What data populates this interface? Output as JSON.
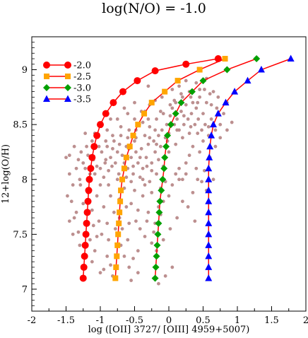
{
  "chart_data": {
    "type": "line",
    "title": "log(N/O) = -1.0",
    "xlabel": "log ([OII] 3727/ [OIII] 4959+5007)",
    "ylabel": "12+log(O/H)",
    "xlim": [
      -2,
      2
    ],
    "ylim": [
      6.8,
      9.3
    ],
    "xticks": [
      "-2",
      "-1.5",
      "-1",
      "-0.5",
      "0",
      "0.5",
      "1",
      "1.5",
      "2"
    ],
    "yticks": [
      "7",
      "7.5",
      "8",
      "8.5",
      "9"
    ],
    "grid": false,
    "legend_position": "top-left",
    "series": [
      {
        "name": "-2.0",
        "color": "#ff0000",
        "marker": "circle",
        "line_color": "#ff0000",
        "points": [
          [
            -1.25,
            7.1
          ],
          [
            -1.24,
            7.2
          ],
          [
            -1.23,
            7.3
          ],
          [
            -1.22,
            7.4
          ],
          [
            -1.21,
            7.5
          ],
          [
            -1.2,
            7.6
          ],
          [
            -1.19,
            7.7
          ],
          [
            -1.18,
            7.8
          ],
          [
            -1.17,
            7.9
          ],
          [
            -1.16,
            8.0
          ],
          [
            -1.14,
            8.1
          ],
          [
            -1.12,
            8.2
          ],
          [
            -1.09,
            8.3
          ],
          [
            -1.05,
            8.4
          ],
          [
            -1.0,
            8.5
          ],
          [
            -0.92,
            8.6
          ],
          [
            -0.81,
            8.7
          ],
          [
            -0.67,
            8.8
          ],
          [
            -0.46,
            8.9
          ],
          [
            -0.2,
            8.99
          ],
          [
            0.25,
            9.05
          ],
          [
            0.72,
            9.1
          ]
        ]
      },
      {
        "name": "-2.5",
        "color": "#ffa500",
        "marker": "square",
        "line_color": "#ff0000",
        "points": [
          [
            -0.78,
            7.1
          ],
          [
            -0.77,
            7.2
          ],
          [
            -0.76,
            7.3
          ],
          [
            -0.75,
            7.4
          ],
          [
            -0.74,
            7.5
          ],
          [
            -0.73,
            7.6
          ],
          [
            -0.72,
            7.7
          ],
          [
            -0.71,
            7.8
          ],
          [
            -0.7,
            7.9
          ],
          [
            -0.68,
            8.0
          ],
          [
            -0.65,
            8.1
          ],
          [
            -0.62,
            8.2
          ],
          [
            -0.57,
            8.3
          ],
          [
            -0.52,
            8.4
          ],
          [
            -0.45,
            8.5
          ],
          [
            -0.36,
            8.6
          ],
          [
            -0.25,
            8.7
          ],
          [
            -0.06,
            8.8
          ],
          [
            0.13,
            8.9
          ],
          [
            0.45,
            9.0
          ],
          [
            0.82,
            9.1
          ]
        ]
      },
      {
        "name": "-3.0",
        "color": "#00a000",
        "marker": "diamond",
        "line_color": "#ff0000",
        "points": [
          [
            -0.2,
            7.1
          ],
          [
            -0.19,
            7.2
          ],
          [
            -0.18,
            7.3
          ],
          [
            -0.17,
            7.4
          ],
          [
            -0.16,
            7.5
          ],
          [
            -0.15,
            7.6
          ],
          [
            -0.14,
            7.7
          ],
          [
            -0.13,
            7.8
          ],
          [
            -0.11,
            7.9
          ],
          [
            -0.09,
            8.0
          ],
          [
            -0.07,
            8.1
          ],
          [
            -0.06,
            8.2
          ],
          [
            -0.04,
            8.3
          ],
          [
            -0.02,
            8.4
          ],
          [
            0.03,
            8.5
          ],
          [
            0.1,
            8.6
          ],
          [
            0.18,
            8.7
          ],
          [
            0.34,
            8.8
          ],
          [
            0.5,
            8.9
          ],
          [
            0.85,
            9.0
          ],
          [
            1.28,
            9.1
          ]
        ]
      },
      {
        "name": "-3.5",
        "color": "#0000ff",
        "marker": "triangle",
        "line_color": "#ff0000",
        "points": [
          [
            0.58,
            7.1
          ],
          [
            0.58,
            7.2
          ],
          [
            0.58,
            7.3
          ],
          [
            0.58,
            7.4
          ],
          [
            0.58,
            7.5
          ],
          [
            0.58,
            7.6
          ],
          [
            0.58,
            7.7
          ],
          [
            0.58,
            7.8
          ],
          [
            0.58,
            7.9
          ],
          [
            0.58,
            8.0
          ],
          [
            0.58,
            8.1
          ],
          [
            0.59,
            8.2
          ],
          [
            0.6,
            8.3
          ],
          [
            0.62,
            8.4
          ],
          [
            0.65,
            8.5
          ],
          [
            0.72,
            8.6
          ],
          [
            0.83,
            8.7
          ],
          [
            0.96,
            8.8
          ],
          [
            1.15,
            8.9
          ],
          [
            1.35,
            9.0
          ],
          [
            1.78,
            9.1
          ]
        ]
      }
    ],
    "observations": {
      "color": "#bc8f8f",
      "marker": "dot",
      "points": [
        [
          -1.35,
          8.1
        ],
        [
          -1.3,
          8.0
        ],
        [
          -1.25,
          8.15
        ],
        [
          -1.2,
          8.3
        ],
        [
          -1.42,
          7.8
        ],
        [
          -1.4,
          7.5
        ],
        [
          -1.32,
          7.52
        ],
        [
          -1.38,
          7.65
        ],
        [
          -1.29,
          7.95
        ],
        [
          -1.18,
          8.22
        ],
        [
          -1.15,
          8.05
        ],
        [
          -1.1,
          8.18
        ],
        [
          -1.05,
          8.12
        ],
        [
          -1.0,
          8.1
        ],
        [
          -0.98,
          8.25
        ],
        [
          -0.95,
          8.02
        ],
        [
          -0.93,
          8.15
        ],
        [
          -0.9,
          8.3
        ],
        [
          -0.88,
          8.08
        ],
        [
          -0.85,
          8.2
        ],
        [
          -0.83,
          8.12
        ],
        [
          -0.8,
          8.35
        ],
        [
          -0.78,
          8.15
        ],
        [
          -0.75,
          8.25
        ],
        [
          -0.73,
          8.05
        ],
        [
          -0.7,
          8.4
        ],
        [
          -0.68,
          8.22
        ],
        [
          -0.65,
          8.15
        ],
        [
          -0.62,
          8.3
        ],
        [
          -0.6,
          8.1
        ],
        [
          -0.58,
          8.45
        ],
        [
          -0.55,
          8.2
        ],
        [
          -0.52,
          8.05
        ],
        [
          -0.5,
          8.35
        ],
        [
          -0.48,
          8.25
        ],
        [
          -0.45,
          8.15
        ],
        [
          -0.43,
          8.5
        ],
        [
          -0.4,
          8.28
        ],
        [
          -0.38,
          8.1
        ],
        [
          -0.35,
          8.4
        ],
        [
          -0.33,
          8.2
        ],
        [
          -0.3,
          8.32
        ],
        [
          -0.28,
          8.48
        ],
        [
          -0.25,
          8.15
        ],
        [
          -0.22,
          8.35
        ],
        [
          -0.2,
          8.25
        ],
        [
          -0.18,
          8.55
        ],
        [
          -0.15,
          8.4
        ],
        [
          -0.12,
          8.3
        ],
        [
          -0.1,
          8.45
        ],
        [
          -0.08,
          8.6
        ],
        [
          -0.05,
          8.38
        ],
        [
          -0.03,
          8.5
        ],
        [
          0.0,
          8.42
        ],
        [
          0.02,
          8.58
        ],
        [
          0.05,
          8.65
        ],
        [
          0.08,
          8.5
        ],
        [
          0.1,
          8.7
        ],
        [
          0.12,
          8.55
        ],
        [
          0.15,
          8.45
        ],
        [
          0.18,
          8.62
        ],
        [
          0.2,
          8.75
        ],
        [
          0.22,
          8.5
        ],
        [
          0.25,
          8.68
        ],
        [
          0.28,
          8.55
        ],
        [
          0.3,
          8.8
        ],
        [
          0.33,
          8.6
        ],
        [
          0.35,
          8.7
        ],
        [
          0.38,
          8.5
        ],
        [
          0.4,
          8.65
        ],
        [
          0.43,
          8.55
        ],
        [
          0.45,
          8.75
        ],
        [
          0.48,
          8.45
        ],
        [
          0.5,
          8.6
        ],
        [
          0.53,
          8.5
        ],
        [
          0.55,
          8.7
        ],
        [
          0.58,
          8.4
        ],
        [
          0.62,
          8.55
        ],
        [
          0.68,
          8.45
        ],
        [
          0.75,
          8.5
        ],
        [
          -0.98,
          7.5
        ],
        [
          -1.02,
          7.62
        ],
        [
          -0.95,
          7.75
        ],
        [
          -0.9,
          7.6
        ],
        [
          -0.88,
          7.45
        ],
        [
          -0.85,
          7.85
        ],
        [
          -0.8,
          7.7
        ],
        [
          -0.78,
          7.55
        ],
        [
          -0.72,
          7.82
        ],
        [
          -0.7,
          7.4
        ],
        [
          -0.65,
          7.3
        ],
        [
          -0.6,
          7.45
        ],
        [
          -0.58,
          7.6
        ],
        [
          -0.55,
          7.78
        ],
        [
          -0.5,
          7.9
        ],
        [
          -0.45,
          7.72
        ],
        [
          -0.42,
          7.55
        ],
        [
          -0.38,
          7.85
        ],
        [
          -0.35,
          7.95
        ],
        [
          -0.3,
          7.7
        ],
        [
          -0.25,
          7.88
        ],
        [
          -0.2,
          7.6
        ],
        [
          -0.15,
          7.75
        ],
        [
          -0.12,
          7.92
        ],
        [
          -0.08,
          7.8
        ],
        [
          -0.05,
          7.98
        ],
        [
          0.0,
          7.85
        ],
        [
          0.05,
          7.95
        ],
        [
          0.1,
          8.05
        ],
        [
          0.15,
          8.1
        ],
        [
          0.2,
          8.0
        ],
        [
          0.25,
          8.15
        ],
        [
          0.3,
          8.22
        ],
        [
          0.35,
          8.3
        ],
        [
          0.4,
          8.1
        ],
        [
          0.45,
          8.25
        ],
        [
          -0.95,
          7.18
        ],
        [
          -0.9,
          7.3
        ],
        [
          -0.85,
          7.22
        ],
        [
          -0.58,
          7.2
        ],
        [
          -0.52,
          7.28
        ],
        [
          -1.12,
          7.25
        ],
        [
          -1.08,
          7.35
        ],
        [
          -1.0,
          7.15
        ],
        [
          -0.45,
          7.35
        ],
        [
          -0.35,
          7.48
        ],
        [
          -0.25,
          7.42
        ],
        [
          -0.9,
          8.45
        ],
        [
          -0.85,
          8.55
        ],
        [
          -0.6,
          8.6
        ],
        [
          -0.5,
          8.7
        ],
        [
          -0.35,
          8.62
        ],
        [
          -0.2,
          8.72
        ],
        [
          -0.1,
          8.75
        ],
        [
          0.05,
          8.82
        ],
        [
          0.15,
          8.85
        ],
        [
          0.25,
          8.9
        ],
        [
          0.4,
          8.88
        ],
        [
          0.55,
          8.92
        ],
        [
          0.65,
          8.8
        ],
        [
          -0.3,
          8.85
        ],
        [
          -1.0,
          7.95
        ],
        [
          -1.05,
          7.85
        ],
        [
          -1.12,
          7.72
        ],
        [
          -1.18,
          7.88
        ],
        [
          -1.25,
          7.78
        ],
        [
          -1.35,
          7.7
        ],
        [
          -1.45,
          7.62
        ],
        [
          -1.48,
          7.85
        ],
        [
          -1.5,
          8.2
        ],
        [
          -1.45,
          8.05
        ],
        [
          -1.4,
          7.95
        ],
        [
          -0.65,
          8.65
        ],
        [
          -0.75,
          8.55
        ],
        [
          -0.82,
          8.4
        ],
        [
          -0.92,
          8.35
        ],
        [
          -0.25,
          8.08
        ],
        [
          -0.15,
          8.18
        ],
        [
          0.0,
          8.25
        ],
        [
          0.1,
          8.32
        ],
        [
          0.2,
          8.38
        ],
        [
          0.3,
          8.42
        ],
        [
          0.12,
          7.65
        ],
        [
          0.02,
          7.55
        ],
        [
          -0.08,
          7.45
        ],
        [
          -0.18,
          7.35
        ],
        [
          0.2,
          7.8
        ],
        [
          0.35,
          7.88
        ],
        [
          -0.42,
          8.02
        ],
        [
          -0.55,
          7.98
        ],
        [
          -0.65,
          7.92
        ],
        [
          -0.75,
          8.0
        ],
        [
          -0.88,
          7.95
        ],
        [
          -0.5,
          8.55
        ],
        [
          -0.4,
          8.62
        ],
        [
          -0.3,
          8.55
        ],
        [
          -0.2,
          8.45
        ],
        [
          0.45,
          8.82
        ],
        [
          0.6,
          8.78
        ],
        [
          0.7,
          8.65
        ],
        [
          0.8,
          8.6
        ],
        [
          0.85,
          8.7
        ],
        [
          -1.08,
          8.42
        ],
        [
          -1.12,
          8.35
        ],
        [
          -1.22,
          8.42
        ],
        [
          -1.28,
          8.25
        ],
        [
          -1.38,
          8.3
        ],
        [
          -1.45,
          8.22
        ],
        [
          -0.7,
          8.48
        ],
        [
          -0.6,
          8.38
        ],
        [
          -0.48,
          8.45
        ],
        [
          -0.38,
          8.52
        ],
        [
          -0.28,
          8.38
        ],
        [
          -0.18,
          8.32
        ],
        [
          -0.72,
          7.65
        ],
        [
          -0.62,
          7.75
        ],
        [
          -0.68,
          7.55
        ],
        [
          -0.48,
          7.62
        ],
        [
          -0.32,
          7.62
        ],
        [
          -0.22,
          7.52
        ],
        [
          -0.12,
          7.68
        ],
        [
          0.28,
          7.75
        ],
        [
          0.38,
          7.62
        ],
        [
          0.48,
          7.98
        ],
        [
          0.52,
          8.08
        ],
        [
          0.6,
          8.2
        ],
        [
          0.68,
          8.3
        ],
        [
          0.75,
          8.38
        ],
        [
          0.85,
          8.45
        ],
        [
          0.92,
          8.52
        ],
        [
          -0.15,
          7.05
        ],
        [
          -0.05,
          7.12
        ],
        [
          0.05,
          7.2
        ],
        [
          -0.55,
          7.08
        ],
        [
          -0.45,
          7.15
        ],
        [
          -0.82,
          7.12
        ],
        [
          -0.38,
          8.0
        ],
        [
          -0.28,
          7.98
        ],
        [
          -0.18,
          8.05
        ],
        [
          -0.08,
          8.12
        ],
        [
          -0.62,
          8.02
        ],
        [
          -0.52,
          8.12
        ],
        [
          -0.42,
          8.2
        ],
        [
          -0.32,
          8.12
        ],
        [
          -0.92,
          8.18
        ],
        [
          -0.82,
          8.28
        ],
        [
          -0.72,
          8.32
        ],
        [
          -0.58,
          8.28
        ],
        [
          -0.48,
          8.38
        ],
        [
          -1.02,
          8.3
        ],
        [
          -1.08,
          8.05
        ],
        [
          -1.22,
          8.1
        ],
        [
          -1.32,
          8.18
        ],
        [
          -0.28,
          8.68
        ],
        [
          -0.12,
          8.62
        ],
        [
          0.08,
          8.72
        ],
        [
          0.18,
          8.78
        ],
        [
          0.32,
          8.75
        ],
        [
          0.42,
          8.7
        ],
        [
          0.52,
          8.82
        ],
        [
          0.62,
          8.68
        ],
        [
          0.72,
          8.75
        ],
        [
          0.02,
          8.68
        ],
        [
          -0.02,
          8.35
        ],
        [
          0.12,
          8.45
        ],
        [
          0.22,
          8.58
        ],
        [
          0.32,
          8.48
        ],
        [
          0.42,
          8.42
        ],
        [
          0.5,
          8.35
        ],
        [
          0.58,
          8.48
        ],
        [
          -1.15,
          7.45
        ],
        [
          -1.2,
          7.6
        ],
        [
          -1.3,
          7.4
        ],
        [
          -1.05,
          7.48
        ],
        [
          -1.1,
          7.58
        ],
        [
          0.15,
          8.0
        ],
        [
          0.25,
          8.05
        ],
        [
          0.42,
          8.0
        ],
        [
          0.55,
          7.9
        ],
        [
          0.65,
          8.0
        ]
      ]
    }
  }
}
